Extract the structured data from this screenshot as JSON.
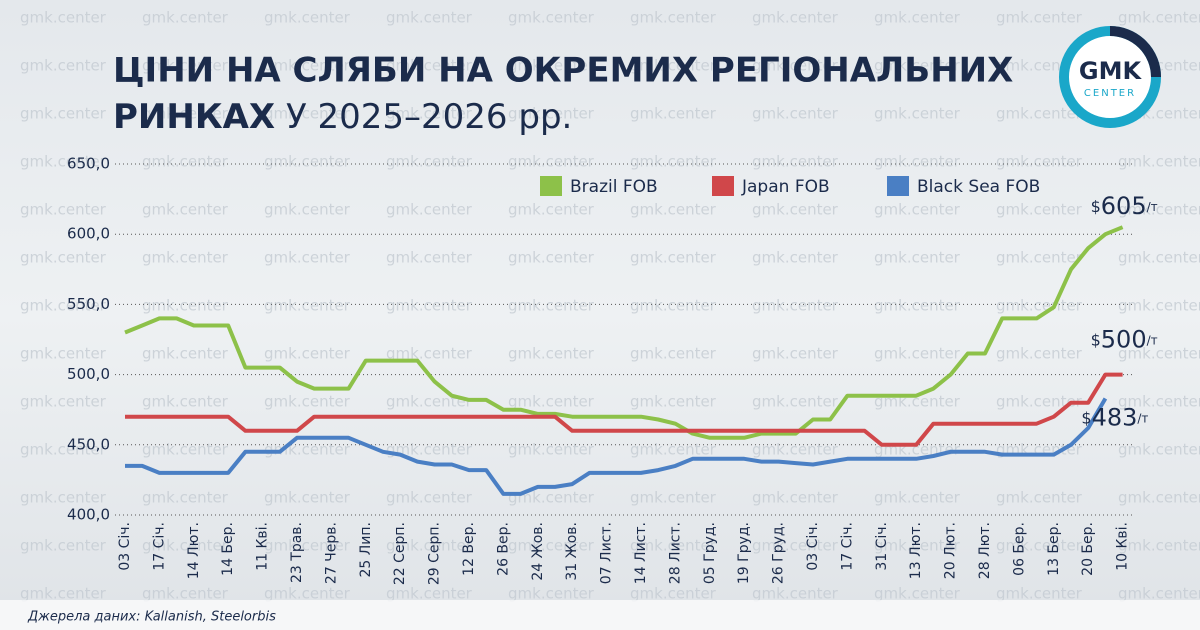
{
  "chart_data": {
    "type": "line",
    "title_bold": "ЦІНИ НА СЛЯБИ НА ОКРЕМИХ РЕГІОНАЛЬНИХ",
    "title_bold_2": "РИНКАХ",
    "title_rest": "У 2025–2026 рр.",
    "source": "Джерела даних: Kallanish, Steelorbis",
    "watermark": "gmk.center",
    "logo": {
      "main": "GMK",
      "sub": "CENTER"
    },
    "categories": [
      "03 Січ.",
      null,
      "17 Січ.",
      null,
      "14 Лют.",
      null,
      "14 Бер.",
      null,
      "11 Кві.",
      null,
      "23 Трав.",
      null,
      "27 Черв.",
      null,
      "25 Лип.",
      null,
      "22 Серп.",
      null,
      "29 Серп.",
      null,
      "12 Вер.",
      null,
      "26 Вер.",
      null,
      "24 Жов.",
      null,
      "31 Жов.",
      null,
      "07 Лист.",
      null,
      "14 Лист.",
      null,
      "28 Лист.",
      null,
      "05 Груд.",
      null,
      "19 Груд.",
      null,
      "26 Груд.",
      null,
      "03 Січ.",
      null,
      "17 Січ.",
      null,
      "31 Січ.",
      null,
      "13 Лют.",
      null,
      "20 Лют.",
      null,
      "28 Лют.",
      null,
      "06 Бер.",
      null,
      "13 Бер.",
      null,
      "20 Бер.",
      null,
      "10 Кві."
    ],
    "series": [
      {
        "name": "Brazil FOB",
        "color": "#8dc149",
        "values": [
          530,
          535,
          540,
          540,
          535,
          535,
          535,
          505,
          505,
          505,
          495,
          490,
          490,
          490,
          510,
          510,
          510,
          510,
          495,
          485,
          482,
          482,
          475,
          475,
          472,
          472,
          470,
          470,
          470,
          470,
          470,
          468,
          465,
          458,
          455,
          455,
          455,
          458,
          458,
          458,
          468,
          468,
          485,
          485,
          485,
          485,
          485,
          490,
          500,
          515,
          515,
          540,
          540,
          540,
          548,
          575,
          590,
          600,
          605
        ]
      },
      {
        "name": "Japan FOB",
        "color": "#d0474a",
        "values": [
          470,
          470,
          470,
          470,
          470,
          470,
          470,
          460,
          460,
          460,
          460,
          470,
          470,
          470,
          470,
          470,
          470,
          470,
          470,
          470,
          470,
          470,
          470,
          470,
          470,
          470,
          460,
          460,
          460,
          460,
          460,
          460,
          460,
          460,
          460,
          460,
          460,
          460,
          460,
          460,
          460,
          460,
          460,
          460,
          450,
          450,
          450,
          465,
          465,
          465,
          465,
          465,
          465,
          465,
          470,
          480,
          480,
          500,
          500
        ]
      },
      {
        "name": "Black Sea FOB",
        "color": "#4a7fc4",
        "values": [
          435,
          435,
          430,
          430,
          430,
          430,
          430,
          445,
          445,
          445,
          455,
          455,
          455,
          455,
          450,
          445,
          443,
          438,
          436,
          436,
          432,
          432,
          415,
          415,
          420,
          420,
          422,
          430,
          430,
          430,
          430,
          432,
          435,
          440,
          440,
          440,
          440,
          438,
          438,
          437,
          436,
          438,
          440,
          440,
          440,
          440,
          440,
          442,
          445,
          445,
          445,
          443,
          443,
          443,
          443,
          450,
          462,
          483,
          null
        ]
      }
    ],
    "annotations": [
      {
        "currency": "$",
        "value": 605,
        "unit": "/т"
      },
      {
        "currency": "$",
        "value": 500,
        "unit": "/т"
      },
      {
        "currency": "$",
        "value": 483,
        "unit": "/т"
      }
    ],
    "ylim": [
      400,
      650
    ],
    "yticks": [
      {
        "value": 400,
        "label": "400,0"
      },
      {
        "value": 450,
        "label": "450,0"
      },
      {
        "value": 500,
        "label": "500,0"
      },
      {
        "value": 550,
        "label": "550,0"
      },
      {
        "value": 600,
        "label": "600,0"
      },
      {
        "value": 650,
        "label": "650,0"
      }
    ],
    "grid": true,
    "legend": "top"
  }
}
